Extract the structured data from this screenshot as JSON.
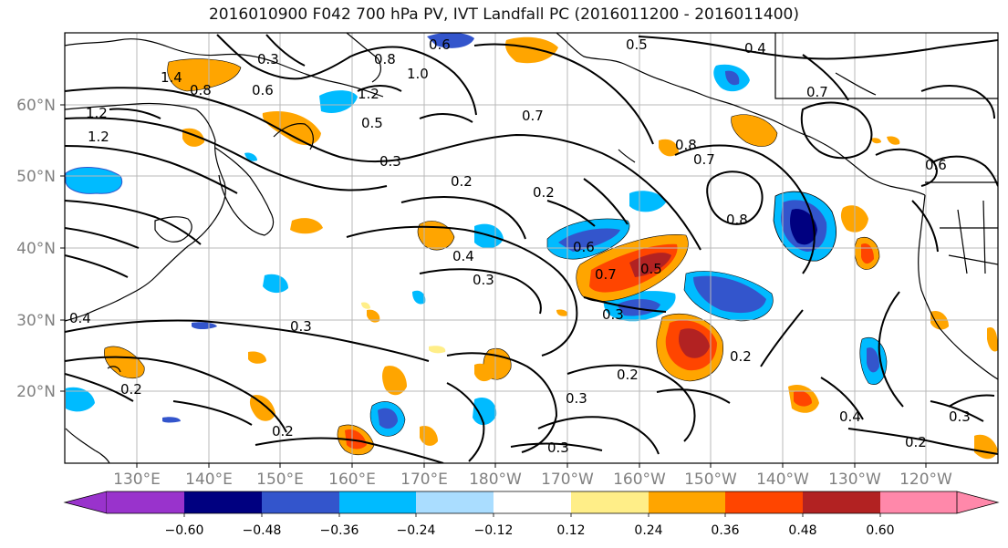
{
  "title": "2016010900 F042 700 hPa PV, IVT Landfall PC (2016011200 - 2016011400)",
  "map": {
    "lat_labels": [
      "60°N",
      "50°N",
      "40°N",
      "30°N",
      "20°N"
    ],
    "lon_labels": [
      "130°E",
      "140°E",
      "150°E",
      "160°E",
      "170°E",
      "180°W",
      "170°W",
      "160°W",
      "150°W",
      "140°W",
      "130°W",
      "120°W"
    ],
    "contour_labels": [
      "0.6",
      "0.5",
      "0.4",
      "0.3",
      "0.8",
      "1.0",
      "1.2",
      "0.7",
      "1.4",
      "0.8",
      "0.6",
      "1.2",
      "1.2",
      "0.5",
      "0.3",
      "0.7",
      "0.2",
      "0.2",
      "0.8",
      "0.6",
      "0.4",
      "0.3",
      "0.6",
      "0.7",
      "0.5",
      "0.3",
      "0.3",
      "0.2",
      "0.2",
      "0.3",
      "0.2",
      "0.3",
      "0.2",
      "0.4",
      "0.3",
      "0.2",
      "0.4",
      "0.8",
      "0.7"
    ]
  },
  "colorbar": {
    "ticks": [
      "−0.60",
      "−0.48",
      "−0.36",
      "−0.24",
      "−0.12",
      "0.12",
      "0.24",
      "0.36",
      "0.48",
      "0.60"
    ],
    "colors": [
      "#9933cc",
      "#000080",
      "#3355cc",
      "#00bbff",
      "#aaddff",
      "#ffffff",
      "#ffee88",
      "#ffa500",
      "#ff4500",
      "#b22222",
      "#ff88aa"
    ]
  }
}
